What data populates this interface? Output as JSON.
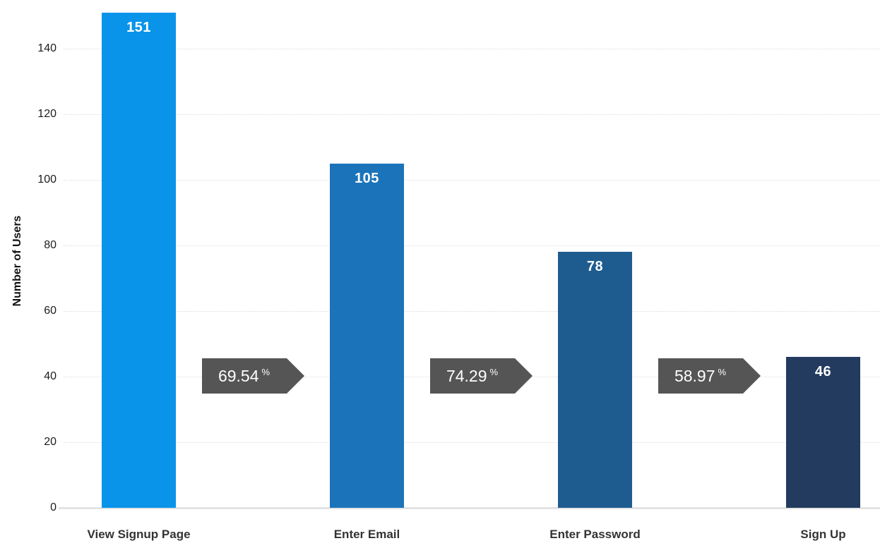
{
  "chart_data": {
    "type": "bar",
    "title": "",
    "categories": [
      "View Signup Page",
      "Enter Email",
      "Enter Password",
      "Sign Up"
    ],
    "values": [
      151,
      105,
      78,
      46
    ],
    "value_labels": [
      "151",
      "105",
      "78",
      "46"
    ],
    "bar_colors": [
      "#0994ea",
      "#1b74ba",
      "#1e5c90",
      "#223b5f"
    ],
    "conversion_percents": [
      "69.54",
      "74.29",
      "58.97"
    ],
    "percent_suffix": "%",
    "arrow_color": "#555555",
    "value_label_color": "#ffffff",
    "xlabel": "",
    "ylabel": "Number of Users",
    "y_ticks": [
      0,
      20,
      40,
      60,
      80,
      100,
      120,
      140
    ],
    "y_tick_labels": [
      "0",
      "20",
      "40",
      "60",
      "80",
      "100",
      "120",
      "140"
    ],
    "ylim": [
      0,
      155
    ],
    "grid": true,
    "legend": false
  }
}
